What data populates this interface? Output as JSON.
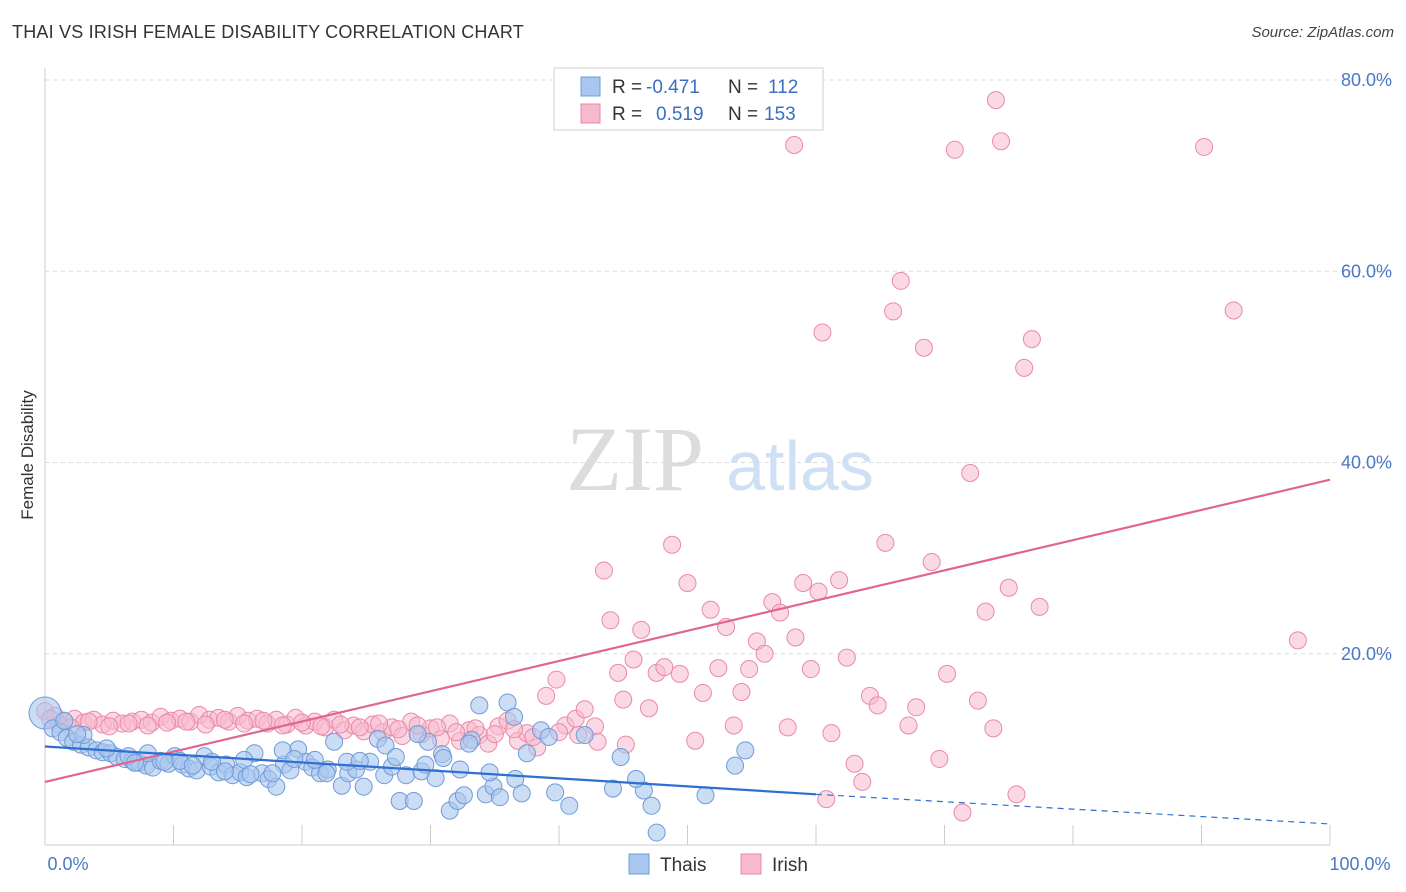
{
  "title": "THAI VS IRISH FEMALE DISABILITY CORRELATION CHART",
  "source": "Source: ZipAtlas.com",
  "watermark": {
    "zip": "ZIP",
    "atlas": "atlas"
  },
  "colors": {
    "thai_fill": "#a9c6ee",
    "thai_stroke": "#6f9bd8",
    "thai_line": "#2f6fcf",
    "irish_fill": "#f7b9cd",
    "irish_stroke": "#ea89a9",
    "irish_line": "#e06690",
    "axis_text": "#4a78c8",
    "grid": "#dddddd"
  },
  "legend": {
    "rows": [
      {
        "r_label": "R =",
        "r_value": "-0.471",
        "n_label": "N =",
        "n_value": "112"
      },
      {
        "r_label": "R =",
        "r_value": "0.519",
        "n_label": "N =",
        "n_value": "153"
      }
    ]
  },
  "chart_data": {
    "type": "scatter",
    "title": "THAI VS IRISH FEMALE DISABILITY CORRELATION CHART",
    "xlabel": "",
    "ylabel": "Female Disability",
    "xlim": [
      0,
      100
    ],
    "ylim": [
      0,
      80
    ],
    "x_tick_labels": [
      "0.0%",
      "100.0%"
    ],
    "y_ticks": [
      20,
      40,
      60,
      80
    ],
    "y_tick_labels": [
      "20.0%",
      "40.0%",
      "60.0%",
      "80.0%"
    ],
    "grid": true,
    "legend_position": "bottom",
    "series": [
      {
        "name": "Thais",
        "trend": {
          "x0": 0,
          "y0": 10.3,
          "x1": 60,
          "y1": 5.3,
          "dashed_to_x": 100,
          "dashed_to_y": 2.2
        },
        "points": [
          [
            0,
            13.8
          ],
          [
            0.6,
            12.2
          ],
          [
            1.2,
            11.8
          ],
          [
            1.7,
            11.2
          ],
          [
            2.2,
            10.8
          ],
          [
            2.8,
            10.5
          ],
          [
            3.4,
            10.2
          ],
          [
            4,
            9.9
          ],
          [
            4.5,
            9.7
          ],
          [
            5.1,
            9.6
          ],
          [
            5.6,
            9.2
          ],
          [
            6.2,
            9.0
          ],
          [
            6.8,
            8.8
          ],
          [
            7.3,
            8.6
          ],
          [
            7.9,
            8.3
          ],
          [
            8.4,
            8.1
          ],
          [
            9,
            8.8
          ],
          [
            9.6,
            8.5
          ],
          [
            10.1,
            9.3
          ],
          [
            10.7,
            8.4
          ],
          [
            11.2,
            8.0
          ],
          [
            11.8,
            7.8
          ],
          [
            12.4,
            9.3
          ],
          [
            12.9,
            8.2
          ],
          [
            13.5,
            7.6
          ],
          [
            14.1,
            8.4
          ],
          [
            14.6,
            7.3
          ],
          [
            15.2,
            7.6
          ],
          [
            15.7,
            7.1
          ],
          [
            16.3,
            9.6
          ],
          [
            16.9,
            7.5
          ],
          [
            17.4,
            6.9
          ],
          [
            18,
            6.1
          ],
          [
            18.6,
            8.4
          ],
          [
            19.1,
            7.8
          ],
          [
            19.7,
            10.0
          ],
          [
            20.3,
            8.7
          ],
          [
            20.8,
            8.1
          ],
          [
            21.4,
            7.5
          ],
          [
            22,
            7.9
          ],
          [
            22.5,
            10.8
          ],
          [
            23.1,
            6.2
          ],
          [
            23.6,
            7.5
          ],
          [
            24.2,
            7.9
          ],
          [
            24.8,
            6.1
          ],
          [
            25.3,
            8.7
          ],
          [
            25.9,
            11.1
          ],
          [
            26.4,
            7.3
          ],
          [
            27,
            8.2
          ],
          [
            27.6,
            4.6
          ],
          [
            28.1,
            7.3
          ],
          [
            28.7,
            4.6
          ],
          [
            29.3,
            7.7
          ],
          [
            29.8,
            10.8
          ],
          [
            30.4,
            7.0
          ],
          [
            30.9,
            9.5
          ],
          [
            31.5,
            3.6
          ],
          [
            32.1,
            4.6
          ],
          [
            32.6,
            5.2
          ],
          [
            33.2,
            11.0
          ],
          [
            33.8,
            14.6
          ],
          [
            34.3,
            5.3
          ],
          [
            34.9,
            6.1
          ],
          [
            35.4,
            5.0
          ],
          [
            36,
            14.9
          ],
          [
            36.6,
            6.9
          ],
          [
            37.1,
            5.4
          ],
          [
            38.6,
            12.0
          ],
          [
            39.7,
            5.5
          ],
          [
            40.8,
            4.1
          ],
          [
            44.8,
            9.2
          ],
          [
            46.6,
            5.7
          ],
          [
            47.2,
            4.1
          ],
          [
            47.6,
            1.3
          ],
          [
            51.4,
            5.2
          ],
          [
            53.7,
            8.3
          ],
          [
            54.5,
            9.9
          ],
          [
            1.5,
            13.0
          ],
          [
            3.0,
            11.5
          ],
          [
            6.5,
            9.3
          ],
          [
            8.0,
            9.6
          ],
          [
            10.5,
            8.8
          ],
          [
            13.0,
            8.7
          ],
          [
            15.5,
            8.9
          ],
          [
            18.5,
            9.9
          ],
          [
            21.0,
            8.9
          ],
          [
            23.5,
            8.7
          ],
          [
            26.5,
            10.4
          ],
          [
            29.0,
            11.6
          ],
          [
            31.0,
            9.1
          ],
          [
            33.0,
            10.6
          ],
          [
            36.5,
            13.4
          ],
          [
            2.5,
            11.6
          ],
          [
            4.8,
            10.1
          ],
          [
            7.0,
            8.6
          ],
          [
            9.3,
            8.7
          ],
          [
            11.5,
            8.3
          ],
          [
            14.0,
            7.7
          ],
          [
            16.0,
            7.4
          ],
          [
            17.7,
            7.5
          ],
          [
            19.4,
            9.0
          ],
          [
            21.9,
            7.5
          ],
          [
            24.5,
            8.8
          ],
          [
            27.3,
            9.2
          ],
          [
            29.6,
            8.4
          ],
          [
            32.3,
            7.9
          ],
          [
            34.6,
            7.6
          ],
          [
            37.5,
            9.6
          ],
          [
            39.2,
            11.3
          ],
          [
            42.0,
            11.5
          ],
          [
            44.2,
            5.9
          ],
          [
            46.0,
            6.9
          ]
        ]
      },
      {
        "name": "Irish",
        "trend": {
          "x0": 0,
          "y0": 6.6,
          "x1": 100,
          "y1": 38.2
        },
        "points": [
          [
            0,
            14.0
          ],
          [
            0.8,
            13.5
          ],
          [
            1.5,
            12.9
          ],
          [
            2.3,
            13.2
          ],
          [
            3,
            12.8
          ],
          [
            3.8,
            13.1
          ],
          [
            4.5,
            12.6
          ],
          [
            5.3,
            13.0
          ],
          [
            6,
            12.7
          ],
          [
            6.8,
            12.9
          ],
          [
            7.5,
            13.1
          ],
          [
            8.3,
            12.8
          ],
          [
            9,
            13.4
          ],
          [
            9.8,
            13.0
          ],
          [
            10.5,
            13.2
          ],
          [
            11.3,
            12.9
          ],
          [
            12,
            13.6
          ],
          [
            12.8,
            13.1
          ],
          [
            13.5,
            13.3
          ],
          [
            14.3,
            12.9
          ],
          [
            15,
            13.5
          ],
          [
            15.8,
            13.0
          ],
          [
            16.5,
            13.2
          ],
          [
            17.3,
            12.7
          ],
          [
            18,
            13.1
          ],
          [
            18.8,
            12.6
          ],
          [
            19.5,
            13.3
          ],
          [
            20.3,
            12.5
          ],
          [
            21,
            12.9
          ],
          [
            21.8,
            12.3
          ],
          [
            22.5,
            13.1
          ],
          [
            23.3,
            12.0
          ],
          [
            24,
            12.5
          ],
          [
            24.8,
            11.9
          ],
          [
            25.5,
            12.6
          ],
          [
            26.3,
            11.8
          ],
          [
            27,
            12.3
          ],
          [
            27.8,
            11.4
          ],
          [
            28.5,
            12.9
          ],
          [
            29.3,
            11.6
          ],
          [
            30,
            12.2
          ],
          [
            30.8,
            11.1
          ],
          [
            31.5,
            12.7
          ],
          [
            32.3,
            10.9
          ],
          [
            33,
            12.0
          ],
          [
            33.8,
            11.5
          ],
          [
            34.5,
            10.6
          ],
          [
            35.3,
            12.4
          ],
          [
            36,
            13.0
          ],
          [
            36.8,
            10.9
          ],
          [
            37.5,
            11.7
          ],
          [
            38.3,
            10.2
          ],
          [
            39,
            15.6
          ],
          [
            39.8,
            17.3
          ],
          [
            40.5,
            12.5
          ],
          [
            41.3,
            13.2
          ],
          [
            42,
            14.2
          ],
          [
            42.8,
            12.4
          ],
          [
            43.5,
            28.7
          ],
          [
            44,
            23.5
          ],
          [
            44.6,
            18.0
          ],
          [
            45.2,
            10.5
          ],
          [
            45.8,
            19.4
          ],
          [
            46.4,
            22.5
          ],
          [
            47,
            14.3
          ],
          [
            47.6,
            18.0
          ],
          [
            48.2,
            18.6
          ],
          [
            48.8,
            31.4
          ],
          [
            49.4,
            17.9
          ],
          [
            50,
            27.4
          ],
          [
            50.6,
            10.9
          ],
          [
            51.2,
            15.9
          ],
          [
            51.8,
            24.6
          ],
          [
            52.4,
            18.5
          ],
          [
            53,
            22.8
          ],
          [
            53.6,
            12.5
          ],
          [
            54.2,
            16.0
          ],
          [
            54.8,
            18.4
          ],
          [
            55.4,
            21.3
          ],
          [
            56,
            20.0
          ],
          [
            56.6,
            25.4
          ],
          [
            57.2,
            24.3
          ],
          [
            57.8,
            12.3
          ],
          [
            58.4,
            21.7
          ],
          [
            59,
            27.4
          ],
          [
            59.6,
            18.4
          ],
          [
            60.2,
            26.5
          ],
          [
            60.8,
            4.8
          ],
          [
            61.2,
            11.7
          ],
          [
            61.8,
            27.7
          ],
          [
            62.4,
            19.6
          ],
          [
            63,
            8.5
          ],
          [
            63.6,
            6.6
          ],
          [
            64.2,
            15.6
          ],
          [
            64.8,
            14.6
          ],
          [
            65.4,
            31.6
          ],
          [
            66,
            55.8
          ],
          [
            66.6,
            59.0
          ],
          [
            67.2,
            12.5
          ],
          [
            67.8,
            14.4
          ],
          [
            68.4,
            52.0
          ],
          [
            69,
            29.6
          ],
          [
            69.6,
            9.0
          ],
          [
            70.2,
            17.9
          ],
          [
            70.8,
            72.7
          ],
          [
            71.4,
            3.4
          ],
          [
            72,
            38.9
          ],
          [
            72.6,
            15.1
          ],
          [
            73.2,
            24.4
          ],
          [
            73.8,
            12.2
          ],
          [
            74.4,
            73.6
          ],
          [
            75,
            26.9
          ],
          [
            75.6,
            5.3
          ],
          [
            76.2,
            49.9
          ],
          [
            76.8,
            52.9
          ],
          [
            77.4,
            24.9
          ],
          [
            60.5,
            53.6
          ],
          [
            58.3,
            73.2
          ],
          [
            74.0,
            77.9
          ],
          [
            90.2,
            73.0
          ],
          [
            92.5,
            55.9
          ],
          [
            97.5,
            21.4
          ],
          [
            0.4,
            13.2
          ],
          [
            1.1,
            12.6
          ],
          [
            2.0,
            12.3
          ],
          [
            3.4,
            12.9
          ],
          [
            5.0,
            12.4
          ],
          [
            6.5,
            12.7
          ],
          [
            8.0,
            12.5
          ],
          [
            9.5,
            12.8
          ],
          [
            11.0,
            12.9
          ],
          [
            12.5,
            12.6
          ],
          [
            14.0,
            13.1
          ],
          [
            15.5,
            12.7
          ],
          [
            17.0,
            13.0
          ],
          [
            18.5,
            12.5
          ],
          [
            20.0,
            12.8
          ],
          [
            21.5,
            12.4
          ],
          [
            23.0,
            12.6
          ],
          [
            24.5,
            12.3
          ],
          [
            26.0,
            12.7
          ],
          [
            27.5,
            12.1
          ],
          [
            29.0,
            12.5
          ],
          [
            30.5,
            12.3
          ],
          [
            32.0,
            11.8
          ],
          [
            33.5,
            12.2
          ],
          [
            35.0,
            11.6
          ],
          [
            36.5,
            12.1
          ],
          [
            38.0,
            11.3
          ],
          [
            40.0,
            11.8
          ],
          [
            41.5,
            11.5
          ],
          [
            43.0,
            10.8
          ],
          [
            45.0,
            15.2
          ]
        ]
      }
    ]
  },
  "bottom_legend": [
    {
      "label": "Thais"
    },
    {
      "label": "Irish"
    }
  ]
}
